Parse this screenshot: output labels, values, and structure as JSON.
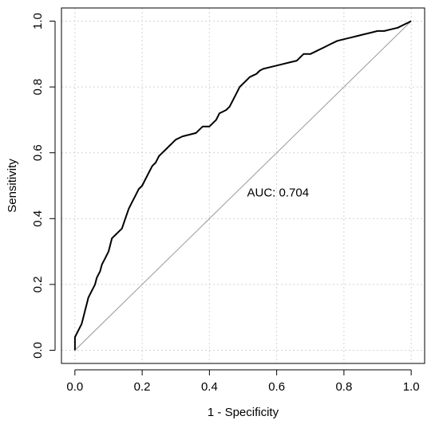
{
  "chart_data": {
    "type": "line",
    "title": "",
    "xlabel": "1 - Specificity",
    "ylabel": "Sensitivity",
    "xlim": [
      -0.04,
      1.04
    ],
    "ylim": [
      -0.04,
      1.04
    ],
    "xticks": [
      0.0,
      0.2,
      0.4,
      0.6,
      0.8,
      1.0
    ],
    "yticks": [
      0.0,
      0.2,
      0.4,
      0.6,
      0.8,
      1.0
    ],
    "xtick_labels": [
      "0.0",
      "0.2",
      "0.4",
      "0.6",
      "0.8",
      "1.0"
    ],
    "ytick_labels": [
      "0.0",
      "0.2",
      "0.4",
      "0.6",
      "0.8",
      "1.0"
    ],
    "grid": true,
    "annotation": {
      "text": "AUC: 0.704",
      "x": 0.5,
      "y": 0.48
    },
    "reference_line": {
      "x": [
        0,
        1
      ],
      "y": [
        0,
        1
      ],
      "color": "#999999"
    },
    "series": [
      {
        "color": "#000000",
        "x": [
          0.0,
          0.0,
          0.01,
          0.02,
          0.025,
          0.03,
          0.035,
          0.04,
          0.05,
          0.06,
          0.065,
          0.075,
          0.08,
          0.09,
          0.1,
          0.11,
          0.12,
          0.125,
          0.13,
          0.14,
          0.15,
          0.16,
          0.17,
          0.18,
          0.19,
          0.2,
          0.21,
          0.22,
          0.23,
          0.24,
          0.25,
          0.26,
          0.27,
          0.28,
          0.285,
          0.29,
          0.3,
          0.31,
          0.32,
          0.34,
          0.36,
          0.37,
          0.38,
          0.39,
          0.4,
          0.42,
          0.43,
          0.44,
          0.45,
          0.46,
          0.47,
          0.48,
          0.49,
          0.5,
          0.51,
          0.52,
          0.53,
          0.54,
          0.55,
          0.56,
          0.58,
          0.6,
          0.62,
          0.64,
          0.66,
          0.67,
          0.68,
          0.7,
          0.72,
          0.74,
          0.76,
          0.78,
          0.8,
          0.82,
          0.84,
          0.86,
          0.88,
          0.9,
          0.92,
          0.94,
          0.96,
          0.98,
          0.99,
          1.0
        ],
        "y": [
          0.0,
          0.04,
          0.06,
          0.08,
          0.1,
          0.12,
          0.14,
          0.16,
          0.18,
          0.2,
          0.22,
          0.24,
          0.26,
          0.28,
          0.3,
          0.34,
          0.35,
          0.355,
          0.36,
          0.37,
          0.4,
          0.43,
          0.45,
          0.47,
          0.49,
          0.5,
          0.52,
          0.54,
          0.56,
          0.57,
          0.59,
          0.6,
          0.61,
          0.62,
          0.625,
          0.63,
          0.64,
          0.645,
          0.65,
          0.655,
          0.66,
          0.67,
          0.68,
          0.68,
          0.68,
          0.7,
          0.72,
          0.725,
          0.73,
          0.74,
          0.76,
          0.78,
          0.8,
          0.81,
          0.82,
          0.83,
          0.835,
          0.84,
          0.85,
          0.855,
          0.86,
          0.865,
          0.87,
          0.875,
          0.88,
          0.89,
          0.9,
          0.9,
          0.91,
          0.92,
          0.93,
          0.94,
          0.945,
          0.95,
          0.955,
          0.96,
          0.965,
          0.97,
          0.97,
          0.975,
          0.98,
          0.99,
          0.995,
          1.0
        ]
      }
    ]
  }
}
